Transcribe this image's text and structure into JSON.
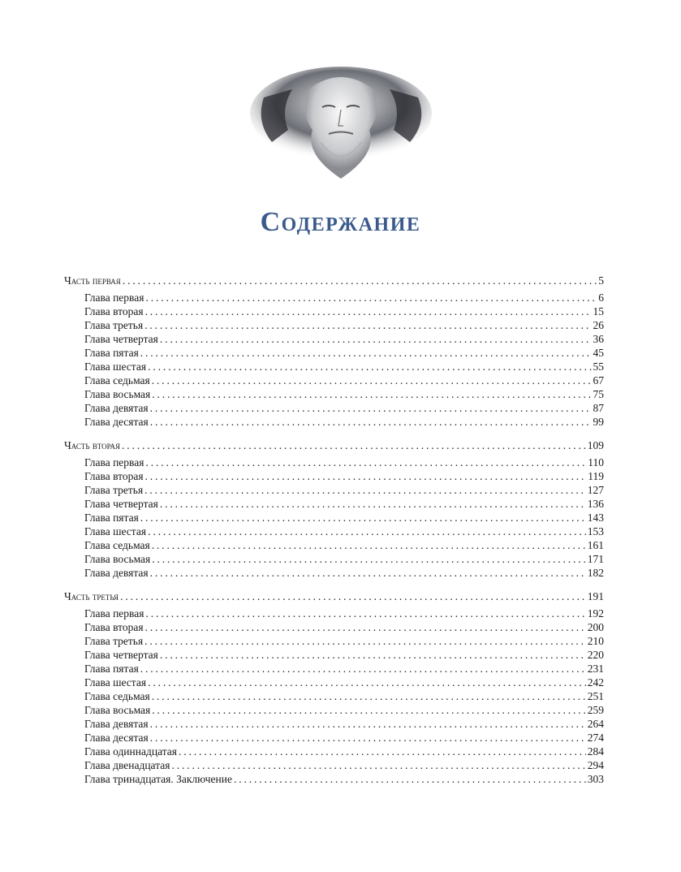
{
  "title": "Содержание",
  "illustration": "statue-head",
  "accent_color": "#3b5b8c",
  "parts": [
    {
      "label": "Часть первая",
      "page": "5",
      "chapters": [
        {
          "label": "Глава первая",
          "page": "6"
        },
        {
          "label": "Глава вторая",
          "page": "15"
        },
        {
          "label": "Глава третья",
          "page": "26"
        },
        {
          "label": "Глава четвертая",
          "page": "36"
        },
        {
          "label": "Глава пятая",
          "page": "45"
        },
        {
          "label": "Глава шестая",
          "page": "55"
        },
        {
          "label": "Глава седьмая",
          "page": "67"
        },
        {
          "label": "Глава восьмая",
          "page": "75"
        },
        {
          "label": "Глава девятая",
          "page": "87"
        },
        {
          "label": "Глава десятая",
          "page": "99"
        }
      ]
    },
    {
      "label": "Часть вторая",
      "page": "109",
      "chapters": [
        {
          "label": "Глава первая",
          "page": "110"
        },
        {
          "label": "Глава вторая",
          "page": "119"
        },
        {
          "label": "Глава третья",
          "page": "127"
        },
        {
          "label": "Глава четвертая",
          "page": "136"
        },
        {
          "label": "Глава пятая",
          "page": "143"
        },
        {
          "label": "Глава шестая",
          "page": "153"
        },
        {
          "label": "Глава седьмая",
          "page": "161"
        },
        {
          "label": "Глава восьмая",
          "page": "171"
        },
        {
          "label": "Глава девятая",
          "page": "182"
        }
      ]
    },
    {
      "label": "Часть третья",
      "page": "191",
      "chapters": [
        {
          "label": "Глава первая",
          "page": "192"
        },
        {
          "label": "Глава вторая",
          "page": "200"
        },
        {
          "label": "Глава третья",
          "page": "210"
        },
        {
          "label": "Глава четвертая",
          "page": "220"
        },
        {
          "label": "Глава пятая",
          "page": "231"
        },
        {
          "label": "Глава шестая",
          "page": "242"
        },
        {
          "label": "Глава седьмая",
          "page": "251"
        },
        {
          "label": "Глава восьмая",
          "page": "259"
        },
        {
          "label": "Глава девятая",
          "page": "264"
        },
        {
          "label": "Глава десятая",
          "page": "274"
        },
        {
          "label": "Глава одиннадцатая",
          "page": "284"
        },
        {
          "label": "Глава двенадцатая",
          "page": "294"
        },
        {
          "label": "Глава тринадцатая. Заключение",
          "page": "303"
        }
      ]
    }
  ]
}
